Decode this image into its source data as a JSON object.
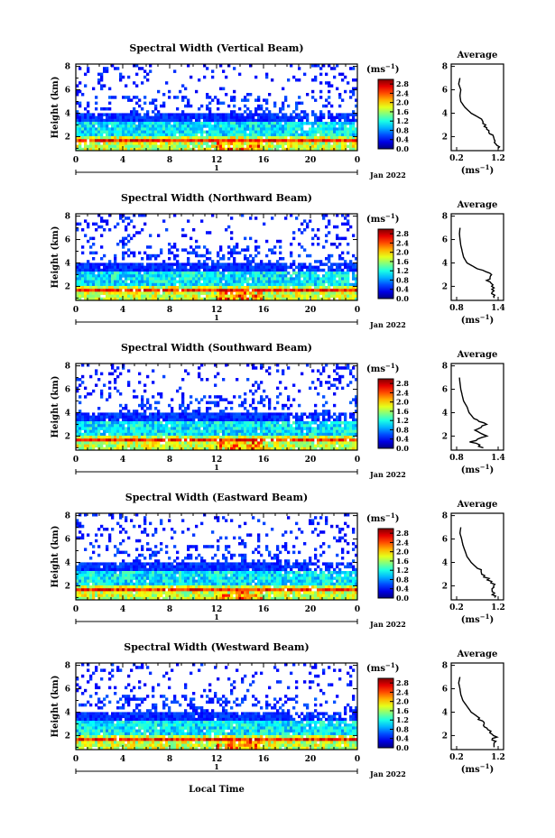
{
  "shared": {
    "ylabel": "Height (km)",
    "unit_label": "(ms",
    "unit_sup": "−1",
    "avg_title": "Average",
    "avg_unit": "(ms",
    "avg_unit_sup": "−1",
    "date_label": "Jan 2022",
    "day_label": "1",
    "xlabel": "Local Time",
    "x_ticks": [
      "0",
      "4",
      "8",
      "12",
      "16",
      "20",
      "0"
    ],
    "y_ticks": [
      "8",
      "6",
      "4",
      "2"
    ],
    "colorbar_ticks": [
      "2.8",
      "2.4",
      "2.0",
      "1.6",
      "1.2",
      "0.8",
      "0.4",
      "0.0"
    ],
    "avg_y_ticks": [
      "8",
      "6",
      "4",
      "2"
    ]
  },
  "chart_data": [
    {
      "type": "heatmap",
      "title": "Spectral Width (Vertical Beam)",
      "xlabel": "Local Time",
      "ylabel": "Height (km)",
      "xlim": [
        0,
        24
      ],
      "ylim": [
        0.8,
        8.2
      ],
      "colorbar": {
        "label": "(ms-1)",
        "range": [
          0.0,
          3.0
        ],
        "ticks": [
          2.8,
          2.4,
          2.0,
          1.6,
          1.2,
          0.8,
          0.4,
          0.0
        ]
      },
      "average_profile": {
        "title": "Average",
        "unit": "(ms-1)",
        "xlim": [
          0.2,
          1.2
        ],
        "x_tick_labels": [
          "0.2",
          "1.2"
        ],
        "height": [
          1.0,
          1.5,
          2.0,
          2.5,
          3.0,
          3.5,
          4.0,
          4.5,
          5.0,
          5.5,
          6.0,
          6.5,
          7.0
        ],
        "width": [
          1.2,
          1.15,
          1.05,
          0.95,
          0.85,
          0.8,
          0.55,
          0.4,
          0.3,
          0.28,
          0.3,
          0.25,
          0.28
        ]
      }
    },
    {
      "type": "heatmap",
      "title": "Spectral Width (Northward Beam)",
      "xlabel": "Local Time",
      "ylabel": "Height (km)",
      "xlim": [
        0,
        24
      ],
      "ylim": [
        0.8,
        8.2
      ],
      "colorbar": {
        "label": "(ms-1)",
        "range": [
          0.0,
          3.0
        ],
        "ticks": [
          2.8,
          2.4,
          2.0,
          1.6,
          1.2,
          0.8,
          0.4,
          0.0
        ]
      },
      "average_profile": {
        "title": "Average",
        "unit": "(ms-1)",
        "xlim": [
          0.8,
          1.4
        ],
        "x_tick_labels": [
          "0.8",
          "1.4"
        ],
        "height": [
          1.0,
          1.5,
          2.0,
          2.5,
          3.0,
          3.5,
          4.0,
          4.5,
          5.0,
          5.5,
          6.0,
          6.5,
          7.0
        ],
        "width": [
          1.35,
          1.3,
          1.32,
          1.25,
          1.3,
          1.1,
          0.95,
          0.9,
          0.88,
          0.86,
          0.85,
          0.84,
          0.85
        ]
      }
    },
    {
      "type": "heatmap",
      "title": "Spectral Width (Southward Beam)",
      "xlabel": "Local Time",
      "ylabel": "Height (km)",
      "xlim": [
        0,
        24
      ],
      "ylim": [
        0.8,
        8.2
      ],
      "colorbar": {
        "label": "(ms-1)",
        "range": [
          0.0,
          3.0
        ],
        "ticks": [
          2.8,
          2.4,
          2.0,
          1.6,
          1.2,
          0.8,
          0.4,
          0.0
        ]
      },
      "average_profile": {
        "title": "Average",
        "unit": "(ms-1)",
        "xlim": [
          0.8,
          1.4
        ],
        "x_tick_labels": [
          "0.8",
          "1.4"
        ],
        "height": [
          1.0,
          1.5,
          2.0,
          2.5,
          3.0,
          3.5,
          4.0,
          4.5,
          5.0,
          5.5,
          6.0,
          6.5,
          7.0
        ],
        "width": [
          1.2,
          1.0,
          1.25,
          1.05,
          1.2,
          1.05,
          0.98,
          0.95,
          0.9,
          0.88,
          0.86,
          0.85,
          0.84
        ]
      }
    },
    {
      "type": "heatmap",
      "title": "Spectral Width (Eastward Beam)",
      "xlabel": "Local Time",
      "ylabel": "Height (km)",
      "xlim": [
        0,
        24
      ],
      "ylim": [
        0.8,
        8.2
      ],
      "colorbar": {
        "label": "(ms-1)",
        "range": [
          0.0,
          3.0
        ],
        "ticks": [
          2.8,
          2.4,
          2.0,
          1.6,
          1.2,
          0.8,
          0.4,
          0.0
        ]
      },
      "average_profile": {
        "title": "Average",
        "unit": "(ms-1)",
        "xlim": [
          0.2,
          1.2
        ],
        "x_tick_labels": [
          "0.2",
          "1.2"
        ],
        "height": [
          1.0,
          1.5,
          2.0,
          2.5,
          3.0,
          3.5,
          4.0,
          4.5,
          5.0,
          5.5,
          6.0,
          6.5,
          7.0
        ],
        "width": [
          1.15,
          1.05,
          1.1,
          0.95,
          0.85,
          0.7,
          0.55,
          0.45,
          0.4,
          0.35,
          0.32,
          0.28,
          0.3
        ]
      }
    },
    {
      "type": "heatmap",
      "title": "Spectral Width (Westward Beam)",
      "xlabel": "Local Time",
      "ylabel": "Height (km)",
      "xlim": [
        0,
        24
      ],
      "ylim": [
        0.8,
        8.2
      ],
      "colorbar": {
        "label": "(ms-1)",
        "range": [
          0.0,
          3.0
        ],
        "ticks": [
          2.8,
          2.4,
          2.0,
          1.6,
          1.2,
          0.8,
          0.4,
          0.0
        ]
      },
      "average_profile": {
        "title": "Average",
        "unit": "(ms-1)",
        "xlim": [
          0.2,
          1.2
        ],
        "x_tick_labels": [
          "0.2",
          "1.2"
        ],
        "height": [
          1.0,
          1.5,
          2.0,
          2.5,
          3.0,
          3.5,
          4.0,
          4.5,
          5.0,
          5.5,
          6.0,
          6.5,
          7.0
        ],
        "width": [
          1.15,
          1.1,
          1.12,
          0.95,
          0.85,
          0.75,
          0.55,
          0.45,
          0.35,
          0.3,
          0.28,
          0.25,
          0.28
        ]
      }
    }
  ]
}
